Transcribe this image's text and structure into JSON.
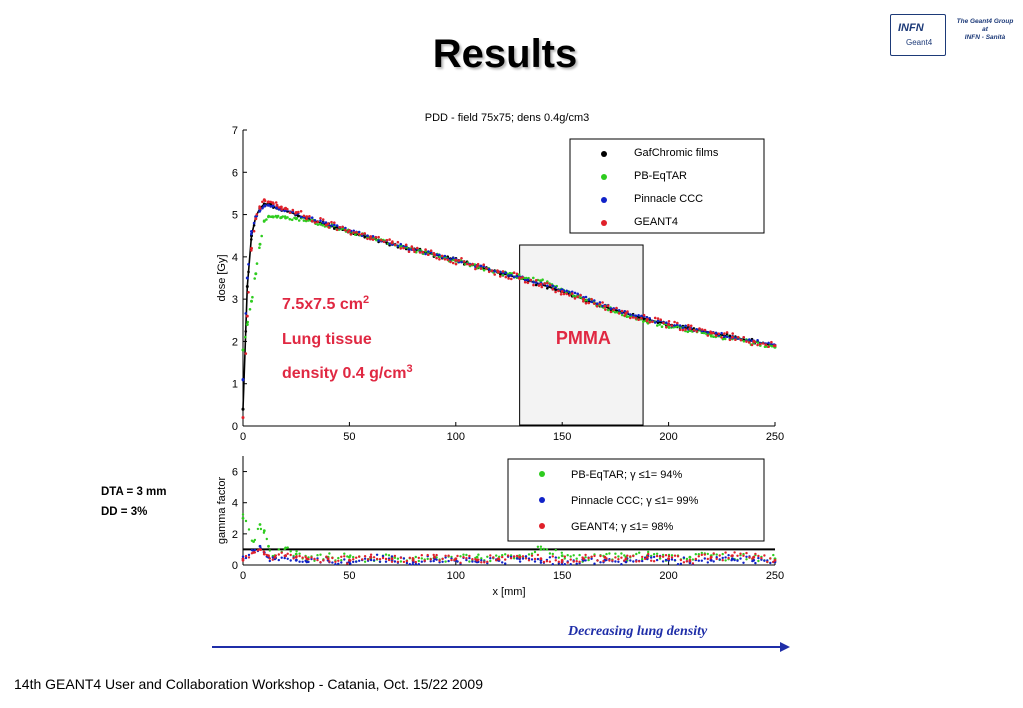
{
  "slide": {
    "title": "Results",
    "footer": "14th GEANT4 User and Collaboration Workshop - Catania, Oct. 15/22 2009",
    "trend_label": "Decreasing lung density",
    "side_notes": [
      "DTA = 3 mm",
      "DD = 3%"
    ]
  },
  "logo": {
    "box_text": "INFN",
    "box_subtext": "Geant4",
    "caption_lines": [
      "The Geant4 Group",
      "at",
      "INFN - Sanità"
    ]
  },
  "colors": {
    "gafchromic": "#000000",
    "pb_eqtar": "#2ecc1f",
    "pinnacle": "#1022c8",
    "geant4": "#e0202a",
    "annotation": "#e02842",
    "arrow": "#1f2ea8"
  },
  "chart_data": [
    {
      "type": "scatter",
      "title": "PDD - field 75x75; dens 0.4g/cm3",
      "xlabel": "",
      "ylabel": "dose [Gy]",
      "xlim": [
        0,
        250
      ],
      "ylim": [
        0,
        7
      ],
      "xticks": [
        0,
        50,
        100,
        150,
        200,
        250
      ],
      "yticks": [
        0,
        1,
        2,
        3,
        4,
        5,
        6,
        7
      ],
      "grid": false,
      "legend_position": "top-right",
      "x": [
        0,
        2,
        4,
        6,
        8,
        10,
        12,
        14,
        16,
        18,
        20,
        25,
        30,
        40,
        50,
        60,
        70,
        80,
        90,
        100,
        110,
        120,
        130,
        140,
        150,
        160,
        170,
        180,
        190,
        200,
        210,
        220,
        230,
        240,
        250
      ],
      "series": [
        {
          "name": "GafChromic films",
          "values": [
            0.4,
            3.3,
            4.5,
            4.95,
            5.15,
            5.25,
            5.25,
            5.2,
            5.15,
            5.12,
            5.1,
            5.0,
            4.9,
            4.75,
            4.6,
            4.45,
            4.3,
            4.18,
            4.05,
            3.92,
            3.78,
            3.63,
            3.5,
            3.35,
            3.18,
            3.0,
            2.82,
            2.66,
            2.52,
            2.4,
            2.3,
            2.2,
            2.1,
            2.0,
            1.9
          ]
        },
        {
          "name": "PB-EqTAR",
          "values": [
            1.8,
            2.4,
            2.95,
            3.6,
            4.3,
            4.85,
            4.95,
            4.95,
            4.94,
            4.93,
            4.92,
            4.9,
            4.87,
            4.75,
            4.6,
            4.46,
            4.32,
            4.18,
            4.04,
            3.9,
            3.76,
            3.63,
            3.53,
            3.43,
            3.22,
            3.02,
            2.82,
            2.62,
            2.46,
            2.36,
            2.26,
            2.16,
            2.06,
            1.96,
            1.86
          ]
        },
        {
          "name": "Pinnacle CCC",
          "values": [
            1.1,
            3.5,
            4.6,
            4.95,
            5.1,
            5.2,
            5.22,
            5.2,
            5.16,
            5.12,
            5.1,
            5.02,
            4.94,
            4.78,
            4.62,
            4.47,
            4.32,
            4.18,
            4.05,
            3.92,
            3.79,
            3.65,
            3.52,
            3.38,
            3.22,
            3.04,
            2.85,
            2.68,
            2.53,
            2.41,
            2.31,
            2.21,
            2.11,
            2.01,
            1.91
          ]
        },
        {
          "name": "GEANT4",
          "values": [
            0.2,
            2.6,
            4.2,
            4.9,
            5.15,
            5.35,
            5.3,
            5.28,
            5.22,
            5.18,
            5.15,
            5.05,
            4.95,
            4.78,
            4.62,
            4.48,
            4.33,
            4.18,
            4.05,
            3.92,
            3.78,
            3.64,
            3.5,
            3.35,
            3.18,
            3.0,
            2.83,
            2.67,
            2.52,
            2.4,
            2.3,
            2.2,
            2.1,
            2.0,
            1.9
          ]
        }
      ],
      "annotations": {
        "field_line": "7.5x7.5 cm",
        "field_sup": "2",
        "tissue_line": "Lung tissue",
        "density_line": "density 0.4 g/cm",
        "density_sup": "3",
        "pmma_label": "PMMA",
        "pmma_region": [
          130,
          188
        ]
      }
    },
    {
      "type": "scatter",
      "title": "",
      "xlabel": "x [mm]",
      "ylabel": "gamma factor",
      "xlim": [
        0,
        250
      ],
      "ylim": [
        0,
        7
      ],
      "xticks": [
        0,
        50,
        100,
        150,
        200,
        250
      ],
      "yticks": [
        0,
        2,
        4,
        6
      ],
      "reference_line": 1,
      "grid": false,
      "legend_position": "top-right",
      "x": [
        0,
        5,
        8,
        10,
        12,
        15,
        20,
        25,
        30,
        40,
        50,
        60,
        70,
        80,
        90,
        100,
        110,
        120,
        130,
        140,
        150,
        160,
        170,
        180,
        190,
        200,
        210,
        220,
        230,
        240,
        250
      ],
      "series": [
        {
          "name": "PB-EqTAR; γ ≤1= 94%",
          "values": [
            3.0,
            1.5,
            2.6,
            2.2,
            1.2,
            0.6,
            1.1,
            0.7,
            0.3,
            0.5,
            0.5,
            0.4,
            0.5,
            0.4,
            0.5,
            0.4,
            0.5,
            0.4,
            0.6,
            1.0,
            0.6,
            0.4,
            0.5,
            0.5,
            0.6,
            0.4,
            0.5,
            0.6,
            0.4,
            0.5,
            0.4
          ]
        },
        {
          "name": "Pinnacle CCC; γ ≤1= 99%",
          "values": [
            0.4,
            0.9,
            1.2,
            0.8,
            0.5,
            0.4,
            0.6,
            0.3,
            0.2,
            0.3,
            0.2,
            0.5,
            0.3,
            0.2,
            0.4,
            0.3,
            0.2,
            0.3,
            0.4,
            0.3,
            0.2,
            0.3,
            0.3,
            0.2,
            0.4,
            0.3,
            0.2,
            0.3,
            0.4,
            0.3,
            0.2
          ]
        },
        {
          "name": "GEANT4; γ ≤1= 98%",
          "values": [
            0.3,
            0.8,
            1.0,
            0.7,
            0.6,
            0.5,
            0.6,
            0.5,
            0.4,
            0.4,
            0.3,
            0.5,
            0.4,
            0.3,
            0.5,
            0.4,
            0.3,
            0.4,
            0.5,
            0.4,
            0.3,
            0.4,
            0.5,
            0.4,
            0.5,
            0.4,
            0.3,
            0.5,
            0.6,
            0.5,
            0.3
          ]
        }
      ]
    }
  ]
}
